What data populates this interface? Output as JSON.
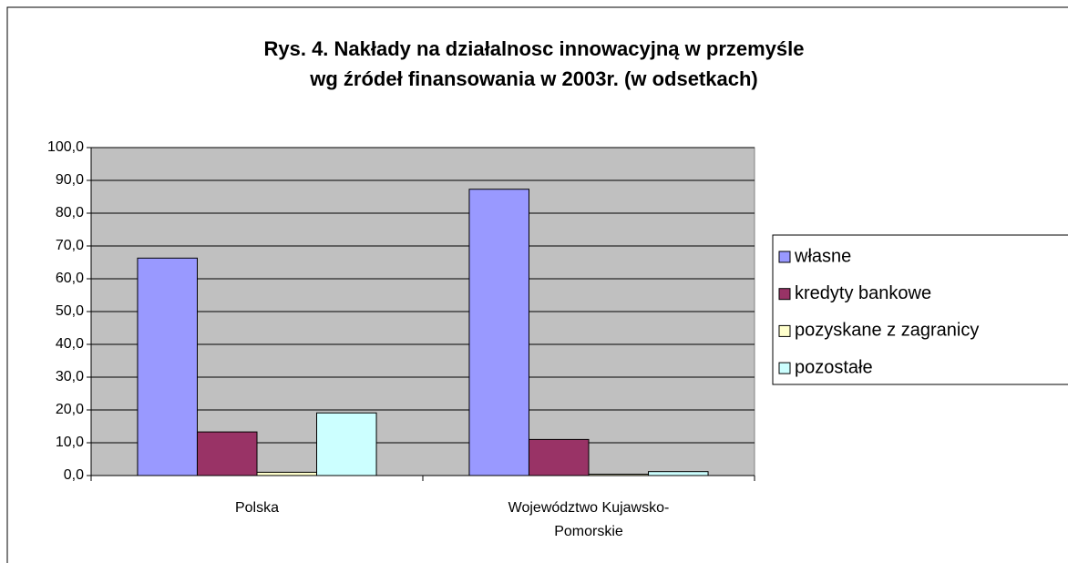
{
  "chart_data": {
    "type": "bar",
    "title": "Rys. 4. Nakłady na działalnosc innowacyjną w przemyśle",
    "subtitle": "wg źródeł finansowania w 2003r. (w odsetkach)",
    "categories": [
      "Polska",
      "Województwo Kujawsko-Pomorskie"
    ],
    "series": [
      {
        "name": "własne",
        "color": "#9999ff",
        "values": [
          66.3,
          87.3
        ]
      },
      {
        "name": "kredyty bankowe",
        "color": "#993366",
        "values": [
          13.3,
          11.0
        ]
      },
      {
        "name": "pozyskane z zagranicy",
        "color": "#ffffcc",
        "values": [
          1.0,
          0.4
        ]
      },
      {
        "name": "pozostałe",
        "color": "#ccffff",
        "values": [
          19.1,
          1.2
        ]
      }
    ],
    "ylim": [
      0,
      100
    ],
    "yticks": [
      {
        "value": 0,
        "label": "0,0"
      },
      {
        "value": 10,
        "label": "10,0"
      },
      {
        "value": 20,
        "label": "20,0"
      },
      {
        "value": 30,
        "label": "30,0"
      },
      {
        "value": 40,
        "label": "40,0"
      },
      {
        "value": 50,
        "label": "50,0"
      },
      {
        "value": 60,
        "label": "60,0"
      },
      {
        "value": 70,
        "label": "70,0"
      },
      {
        "value": 80,
        "label": "80,0"
      },
      {
        "value": 90,
        "label": "90,0"
      },
      {
        "value": 100,
        "label": "100,0"
      }
    ],
    "grid": true,
    "legend": "right",
    "plot_background": "#c0c0c0"
  }
}
